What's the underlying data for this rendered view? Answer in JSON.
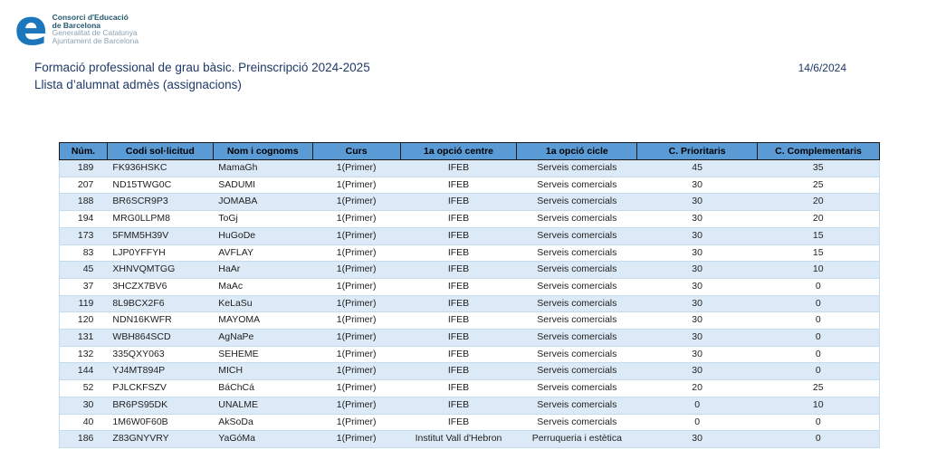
{
  "logo": {
    "glyph": "e",
    "line1": "Consorci d'Educació",
    "line2": "de Barcelona",
    "line3": "Generalitat de Catalunya",
    "line4": "Ajuntament de Barcelona"
  },
  "header": {
    "title_line1": "Formació professional de grau bàsic. Preinscripció 2024-2025",
    "title_line2": "Llista d’alumnat admès (assignacions)",
    "date": "14/6/2024"
  },
  "colors": {
    "header_bg": "#5b9bd5",
    "row_alt_bg": "#dce9f6",
    "title_color": "#1f3a68",
    "logo_blue": "#1b76bc"
  },
  "table": {
    "columns": [
      "Núm.",
      "Codi sol·licitud",
      "Nom i cognoms",
      "Curs",
      "1a opció centre",
      "1a opció cicle",
      "C. Prioritaris",
      "C. Complementaris"
    ],
    "column_widths_pct": [
      5.84,
      12.9,
      12.13,
      10.7,
      14.22,
      14.66,
      14.66,
      14.89
    ],
    "rows": [
      [
        "189",
        "FK936HSKC",
        "MamaGh",
        "1(Primer)",
        "IFEB",
        "Serveis comercials",
        "45",
        "35"
      ],
      [
        "207",
        "ND15TWG0C",
        "SADUMI",
        "1(Primer)",
        "IFEB",
        "Serveis comercials",
        "30",
        "25"
      ],
      [
        "188",
        "BR6SCR9P3",
        "JOMABA",
        "1(Primer)",
        "IFEB",
        "Serveis comercials",
        "30",
        "20"
      ],
      [
        "194",
        "MRG0LLPM8",
        "ToGj",
        "1(Primer)",
        "IFEB",
        "Serveis comercials",
        "30",
        "20"
      ],
      [
        "173",
        "5FMM5H39V",
        "HuGoDe",
        "1(Primer)",
        "IFEB",
        "Serveis comercials",
        "30",
        "15"
      ],
      [
        "83",
        "LJP0YFFYH",
        "AVFLAY",
        "1(Primer)",
        "IFEB",
        "Serveis comercials",
        "30",
        "15"
      ],
      [
        "45",
        "XHNVQMTGG",
        "HaAr",
        "1(Primer)",
        "IFEB",
        "Serveis comercials",
        "30",
        "10"
      ],
      [
        "37",
        "3HCZX7BV6",
        "MaAc",
        "1(Primer)",
        "IFEB",
        "Serveis comercials",
        "30",
        "0"
      ],
      [
        "119",
        "8L9BCX2F6",
        "KeLaSu",
        "1(Primer)",
        "IFEB",
        "Serveis comercials",
        "30",
        "0"
      ],
      [
        "120",
        "NDN16KWFR",
        "MAYOMA",
        "1(Primer)",
        "IFEB",
        "Serveis comercials",
        "30",
        "0"
      ],
      [
        "131",
        "WBH864SCD",
        "AgNaPe",
        "1(Primer)",
        "IFEB",
        "Serveis comercials",
        "30",
        "0"
      ],
      [
        "132",
        "335QXY063",
        "SEHEME",
        "1(Primer)",
        "IFEB",
        "Serveis comercials",
        "30",
        "0"
      ],
      [
        "144",
        "YJ4MT894P",
        "MICH",
        "1(Primer)",
        "IFEB",
        "Serveis comercials",
        "30",
        "0"
      ],
      [
        "52",
        "PJLCKFSZV",
        "BáChCá",
        "1(Primer)",
        "IFEB",
        "Serveis comercials",
        "20",
        "25"
      ],
      [
        "30",
        "BR6PS95DK",
        "UNALME",
        "1(Primer)",
        "IFEB",
        "Serveis comercials",
        "0",
        "10"
      ],
      [
        "40",
        "1M6W0F60B",
        "AkSoDa",
        "1(Primer)",
        "IFEB",
        "Serveis comercials",
        "0",
        "0"
      ],
      [
        "186",
        "Z83GNYVRY",
        "YaGóMa",
        "1(Primer)",
        "Institut Vall d'Hebron",
        "Perruqueria i estètica",
        "30",
        "0"
      ]
    ]
  }
}
